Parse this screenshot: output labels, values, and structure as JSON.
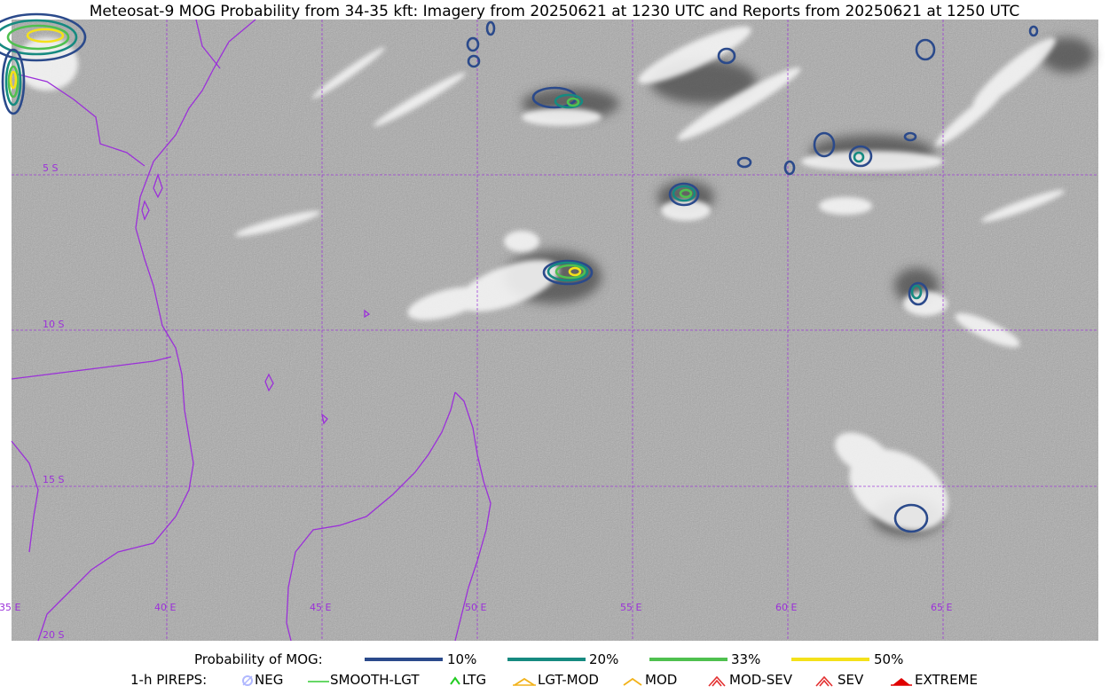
{
  "title": "Meteosat-9 MOG Probability from 34-35 kft: Imagery from 20250621 at 1230 UTC and Reports from 20250621 at 1250 UTC",
  "map": {
    "lon_labels": [
      "35 E",
      "40 E",
      "45 E",
      "50 E",
      "55 E",
      "60 E",
      "65 E"
    ],
    "lat_labels": [
      "5 S",
      "10 S",
      "15 S",
      "20 S"
    ],
    "colors": {
      "background": "#a9a9a9",
      "grid": "#9b30d9",
      "coast": "#9b30d9",
      "cloud": "#f2f2f2",
      "shadow": "#505050"
    }
  },
  "legend_prob": {
    "label": "Probability of MOG:",
    "items": [
      {
        "label": "10%",
        "color": "#2b4a8b"
      },
      {
        "label": "20%",
        "color": "#168a80"
      },
      {
        "label": "33%",
        "color": "#4fc04f"
      },
      {
        "label": "50%",
        "color": "#f4e11a"
      }
    ]
  },
  "legend_pireps": {
    "label": "1-h PIREPS:",
    "items": [
      {
        "label": "NEG",
        "color": "#b0b8ff",
        "icon": "neg-icon"
      },
      {
        "label": "SMOOTH-LGT",
        "color": "#33cc33",
        "icon": "line-icon"
      },
      {
        "label": "LTG",
        "color": "#22cc22",
        "icon": "caret-icon"
      },
      {
        "label": "LGT-MOD",
        "color": "#f2b21a",
        "icon": "double-caret-icon"
      },
      {
        "label": "MOD",
        "color": "#f2b21a",
        "icon": "caret-icon"
      },
      {
        "label": "MOD-SEV",
        "color": "#e33030",
        "icon": "double-caret-icon"
      },
      {
        "label": "SEV",
        "color": "#e33030",
        "icon": "double-caret-icon"
      },
      {
        "label": "EXTREME",
        "color": "#e00000",
        "icon": "filled-caret-icon"
      }
    ]
  }
}
